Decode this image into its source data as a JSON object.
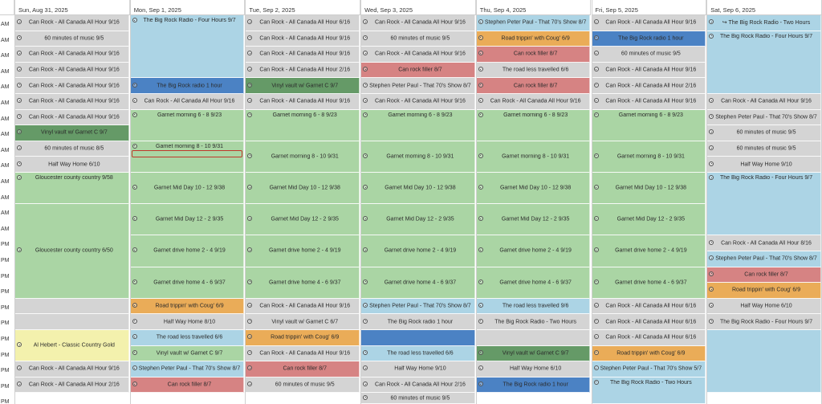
{
  "colors": {
    "gray": "#d4d4d4",
    "blue": "#acd4e5",
    "green": "#aad5a4",
    "orange": "#eaac58",
    "red": "#d68383",
    "darkblue": "#4b82c4",
    "darkgreen": "#659a67",
    "yellow": "#f3f1ad"
  },
  "time_labels": [
    "AM",
    "AM",
    "AM",
    "AM",
    "AM",
    "AM",
    "AM",
    "AM",
    "AM",
    "AM",
    "AM",
    "AM",
    "AM",
    "AM",
    "PM",
    "PM",
    "PM",
    "PM",
    "PM",
    "PM",
    "PM",
    "PM",
    "PM",
    "PM",
    "PM",
    "PM"
  ],
  "days": [
    {
      "label": "Sun, Aug 31, 2025",
      "events": [
        {
          "r": [
            0,
            1
          ],
          "c": "gray",
          "t": "Can Rock - All Canada All Hour 9/16"
        },
        {
          "r": [
            1,
            2
          ],
          "c": "gray",
          "t": "60 minutes of  music  9/5"
        },
        {
          "r": [
            2,
            3
          ],
          "c": "gray",
          "t": "Can Rock - All Canada All Hour 9/16"
        },
        {
          "r": [
            3,
            4
          ],
          "c": "gray",
          "t": "Can Rock - All Canada All Hour 9/16"
        },
        {
          "r": [
            4,
            5
          ],
          "c": "gray",
          "t": "Can Rock - All Canada All Hour 9/16"
        },
        {
          "r": [
            5,
            6
          ],
          "c": "gray",
          "t": "Can Rock - All Canada All Hour 9/16"
        },
        {
          "r": [
            6,
            7
          ],
          "c": "gray",
          "t": "Can Rock - All Canada All Hour 9/16"
        },
        {
          "r": [
            7,
            8
          ],
          "c": "darkgreen",
          "t": "Vinyl vault w/ Garnet C 9/7"
        },
        {
          "r": [
            8,
            9
          ],
          "c": "gray",
          "t": "60 minutes of  music  8/5"
        },
        {
          "r": [
            9,
            10
          ],
          "c": "gray",
          "t": "Half Way Home 6/10"
        },
        {
          "r": [
            10,
            12
          ],
          "c": "green",
          "t": "Gloucester county country 9/58",
          "nt": true
        },
        {
          "r": [
            12,
            18
          ],
          "c": "green",
          "t": "Gloucester county country 6/50"
        },
        {
          "r": [
            18,
            19
          ],
          "c": "gray",
          "t": ""
        },
        {
          "r": [
            19,
            20
          ],
          "c": "gray",
          "t": ""
        },
        {
          "r": [
            20,
            22
          ],
          "c": "yellow",
          "t": "Al Hebert - Classic Country Gold"
        },
        {
          "r": [
            22,
            23
          ],
          "c": "gray",
          "t": "Can Rock - All Canada All Hour 9/16"
        },
        {
          "r": [
            23,
            24
          ],
          "c": "gray",
          "t": "Can Rock - All Canada All Hour 2/16"
        }
      ]
    },
    {
      "label": "Mon, Sep 1, 2025",
      "events": [
        {
          "r": [
            0,
            4
          ],
          "c": "blue",
          "t": "The Big Rock Radio - Four  Hours 9/7",
          "nt": true
        },
        {
          "r": [
            4,
            5
          ],
          "c": "darkblue",
          "t": "The Big Rock radio 1 hour"
        },
        {
          "r": [
            5,
            6
          ],
          "c": "gray",
          "t": "Can Rock - All Canada All Hour 9/16"
        },
        {
          "r": [
            6,
            8
          ],
          "c": "green",
          "t": "Garnet morning 6 - 8 9/23",
          "nt": true
        },
        {
          "r": [
            8,
            10
          ],
          "c": "green",
          "t": "Garnet morning 8 - 10 9/31",
          "nt": true
        },
        {
          "r": [
            10,
            12
          ],
          "c": "green",
          "t": "Garnet Mid Day 10 - 12 9/38"
        },
        {
          "r": [
            12,
            14
          ],
          "c": "green",
          "t": "Garnet Mid Day 12 - 2 9/35"
        },
        {
          "r": [
            14,
            16
          ],
          "c": "green",
          "t": "Garnet drive home 2 - 4 9/19"
        },
        {
          "r": [
            16,
            18
          ],
          "c": "green",
          "t": "Garnet drive home 4 - 6 9/37"
        },
        {
          "r": [
            18,
            19
          ],
          "c": "orange",
          "t": "Road trippin' with Coug' 6/9"
        },
        {
          "r": [
            19,
            20
          ],
          "c": "gray",
          "t": "Half Way Home 8/10"
        },
        {
          "r": [
            20,
            21
          ],
          "c": "blue",
          "t": "The road less travelled 6/6"
        },
        {
          "r": [
            21,
            22
          ],
          "c": "green",
          "t": "Vinyl vault w/ Garnet C 9/7"
        },
        {
          "r": [
            22,
            23
          ],
          "c": "blue",
          "t": "Stephen Peter Paul - That 70's Show 8/7"
        },
        {
          "r": [
            23,
            24
          ],
          "c": "red",
          "t": "Can rock filler 8/7"
        }
      ]
    },
    {
      "label": "Tue, Sep 2, 2025",
      "events": [
        {
          "r": [
            0,
            1
          ],
          "c": "gray",
          "t": "Can Rock - All Canada All Hour 6/16"
        },
        {
          "r": [
            1,
            2
          ],
          "c": "gray",
          "t": "Can Rock - All Canada All Hour 9/16"
        },
        {
          "r": [
            2,
            3
          ],
          "c": "gray",
          "t": "Can Rock - All Canada All Hour 9/16"
        },
        {
          "r": [
            3,
            4
          ],
          "c": "gray",
          "t": "Can Rock - All Canada All Hour 2/16"
        },
        {
          "r": [
            4,
            5
          ],
          "c": "darkgreen",
          "t": "Vinyl vault w/ Garnet C 9/7"
        },
        {
          "r": [
            5,
            6
          ],
          "c": "gray",
          "t": "Can Rock - All Canada All Hour 9/16"
        },
        {
          "r": [
            6,
            8
          ],
          "c": "green",
          "t": "Garnet morning 6 - 8 9/23",
          "nt": true
        },
        {
          "r": [
            8,
            10
          ],
          "c": "green",
          "t": "Garnet morning 8 - 10 9/31"
        },
        {
          "r": [
            10,
            12
          ],
          "c": "green",
          "t": "Garnet Mid Day 10 - 12 9/38"
        },
        {
          "r": [
            12,
            14
          ],
          "c": "green",
          "t": "Garnet Mid Day 12 - 2 9/35"
        },
        {
          "r": [
            14,
            16
          ],
          "c": "green",
          "t": "Garnet drive home 2 - 4 9/19"
        },
        {
          "r": [
            16,
            18
          ],
          "c": "green",
          "t": "Garnet drive home 4 - 6 9/37"
        },
        {
          "r": [
            18,
            19
          ],
          "c": "gray",
          "t": "Can Rock - All Canada All Hour 9/16"
        },
        {
          "r": [
            19,
            20
          ],
          "c": "gray",
          "t": "Vinyl vault w/ Garnet C 6/7"
        },
        {
          "r": [
            20,
            21
          ],
          "c": "orange",
          "t": "Road trippin' with Coug' 6/9"
        },
        {
          "r": [
            21,
            22
          ],
          "c": "gray",
          "t": "Can Rock - All Canada All Hour 9/16"
        },
        {
          "r": [
            22,
            23
          ],
          "c": "red",
          "t": "Can rock filler 8/7"
        },
        {
          "r": [
            23,
            24
          ],
          "c": "gray",
          "t": "60 minutes of  music  9/5"
        }
      ]
    },
    {
      "label": "Wed, Sep 3, 2025",
      "events": [
        {
          "r": [
            0,
            1
          ],
          "c": "gray",
          "t": "Can Rock - All Canada All Hour 9/16"
        },
        {
          "r": [
            1,
            2
          ],
          "c": "gray",
          "t": "60 minutes of  music  9/5"
        },
        {
          "r": [
            2,
            3
          ],
          "c": "gray",
          "t": "Can Rock - All Canada All Hour 9/16"
        },
        {
          "r": [
            3,
            4
          ],
          "c": "red",
          "t": "Can rock filler 8/7"
        },
        {
          "r": [
            4,
            5
          ],
          "c": "gray",
          "t": "Stephen Peter Paul - That 70's Show 8/7"
        },
        {
          "r": [
            5,
            6
          ],
          "c": "gray",
          "t": "Can Rock - All Canada All Hour 9/16"
        },
        {
          "r": [
            6,
            8
          ],
          "c": "green",
          "t": "Garnet morning 6 - 8 9/23",
          "nt": true
        },
        {
          "r": [
            8,
            10
          ],
          "c": "green",
          "t": "Garnet morning 8 - 10 9/31"
        },
        {
          "r": [
            10,
            12
          ],
          "c": "green",
          "t": "Garnet Mid Day 10 - 12 9/38"
        },
        {
          "r": [
            12,
            14
          ],
          "c": "green",
          "t": "Garnet Mid Day 12 - 2 9/35"
        },
        {
          "r": [
            14,
            16
          ],
          "c": "green",
          "t": "Garnet drive home 2 - 4 9/19"
        },
        {
          "r": [
            16,
            18
          ],
          "c": "green",
          "t": "Garnet drive home 4 - 6 9/37"
        },
        {
          "r": [
            18,
            19
          ],
          "c": "blue",
          "t": "Stephen Peter Paul - That 70's Show 8/7"
        },
        {
          "r": [
            19,
            20
          ],
          "c": "gray",
          "t": "The Big Rock radio 1 hour"
        },
        {
          "r": [
            20,
            21
          ],
          "c": "darkblue",
          "t": ""
        },
        {
          "r": [
            21,
            22
          ],
          "c": "blue",
          "t": "The road less travelled 6/6"
        },
        {
          "r": [
            22,
            23
          ],
          "c": "gray",
          "t": "Half Way Home 9/10"
        },
        {
          "r": [
            23,
            24
          ],
          "c": "gray",
          "t": "Can Rock - All Canada All Hour 2/16"
        },
        {
          "r": [
            24,
            25
          ],
          "c": "gray",
          "t": "60 minutes of  music  9/5"
        }
      ]
    },
    {
      "label": "Thu, Sep 4, 2025",
      "events": [
        {
          "r": [
            0,
            1
          ],
          "c": "blue",
          "t": "Stephen Peter Paul - That 70's Show 8/7"
        },
        {
          "r": [
            1,
            2
          ],
          "c": "orange",
          "t": "Road trippin' with Coug' 6/9"
        },
        {
          "r": [
            2,
            3
          ],
          "c": "red",
          "t": "Can rock filler 8/7"
        },
        {
          "r": [
            3,
            4
          ],
          "c": "gray",
          "t": "The road less travelled 6/6"
        },
        {
          "r": [
            4,
            5
          ],
          "c": "red",
          "t": "Can rock filler 8/7"
        },
        {
          "r": [
            5,
            6
          ],
          "c": "gray",
          "t": "Can Rock - All Canada All Hour 9/16"
        },
        {
          "r": [
            6,
            8
          ],
          "c": "green",
          "t": "Garnet morning 6 - 8 9/23",
          "nt": true
        },
        {
          "r": [
            8,
            10
          ],
          "c": "green",
          "t": "Garnet morning 8 - 10 9/31"
        },
        {
          "r": [
            10,
            12
          ],
          "c": "green",
          "t": "Garnet Mid Day 10 - 12 9/38"
        },
        {
          "r": [
            12,
            14
          ],
          "c": "green",
          "t": "Garnet Mid Day 12 - 2 9/35"
        },
        {
          "r": [
            14,
            16
          ],
          "c": "green",
          "t": "Garnet drive home 2 - 4 9/19"
        },
        {
          "r": [
            16,
            18
          ],
          "c": "green",
          "t": "Garnet drive home 4 - 6 9/37"
        },
        {
          "r": [
            18,
            19
          ],
          "c": "blue",
          "t": "The road less travelled 9/6"
        },
        {
          "r": [
            19,
            20
          ],
          "c": "gray",
          "t": "The Big Rock Radio - Two Hours"
        },
        {
          "r": [
            20,
            21
          ],
          "c": "gray",
          "t": ""
        },
        {
          "r": [
            21,
            22
          ],
          "c": "darkgreen",
          "t": "Vinyl vault w/ Garnet C 9/7"
        },
        {
          "r": [
            22,
            23
          ],
          "c": "gray",
          "t": "Half Way Home 6/10"
        },
        {
          "r": [
            23,
            24
          ],
          "c": "darkblue",
          "t": "The Big Rock radio 1 hour"
        }
      ]
    },
    {
      "label": "Fri, Sep 5, 2025",
      "events": [
        {
          "r": [
            0,
            1
          ],
          "c": "gray",
          "t": "Can Rock - All Canada All Hour 9/16"
        },
        {
          "r": [
            1,
            2
          ],
          "c": "darkblue",
          "t": "The Big Rock radio 1 hour"
        },
        {
          "r": [
            2,
            3
          ],
          "c": "gray",
          "t": "60 minutes of  music  9/5"
        },
        {
          "r": [
            3,
            4
          ],
          "c": "gray",
          "t": "Can Rock - All Canada All Hour 9/16"
        },
        {
          "r": [
            4,
            5
          ],
          "c": "gray",
          "t": "Can Rock - All Canada All Hour 2/16"
        },
        {
          "r": [
            5,
            6
          ],
          "c": "gray",
          "t": "Can Rock - All Canada All Hour 9/16"
        },
        {
          "r": [
            6,
            8
          ],
          "c": "green",
          "t": "Garnet morning 6 - 8 9/23",
          "nt": true
        },
        {
          "r": [
            8,
            10
          ],
          "c": "green",
          "t": "Garnet morning 8 - 10 9/31"
        },
        {
          "r": [
            10,
            12
          ],
          "c": "green",
          "t": "Garnet Mid Day 10 - 12 9/38"
        },
        {
          "r": [
            12,
            14
          ],
          "c": "green",
          "t": "Garnet Mid Day 12 - 2 9/35"
        },
        {
          "r": [
            14,
            16
          ],
          "c": "green",
          "t": "Garnet drive home 2 - 4 9/19"
        },
        {
          "r": [
            16,
            18
          ],
          "c": "green",
          "t": "Garnet drive home 4 - 6 9/37"
        },
        {
          "r": [
            18,
            19
          ],
          "c": "gray",
          "t": "Can Rock - All Canada All Hour 6/16"
        },
        {
          "r": [
            19,
            20
          ],
          "c": "gray",
          "t": "Can Rock - All Canada All Hour 6/16"
        },
        {
          "r": [
            20,
            21
          ],
          "c": "gray",
          "t": "Can Rock - All Canada All Hour 6/16"
        },
        {
          "r": [
            21,
            22
          ],
          "c": "orange",
          "t": "Road trippin' with Coug' 6/9"
        },
        {
          "r": [
            22,
            23
          ],
          "c": "blue",
          "t": "Stephen Peter Paul - That 70's Show 5/7"
        },
        {
          "r": [
            23,
            25
          ],
          "c": "blue",
          "t": "The Big Rock Radio - Two Hours",
          "nt": true
        }
      ]
    },
    {
      "label": "Sat, Sep 6, 2025",
      "events": [
        {
          "r": [
            0,
            1
          ],
          "c": "blue",
          "t": "↪ The Big Rock Radio - Two Hours"
        },
        {
          "r": [
            1,
            5
          ],
          "c": "blue",
          "t": "The Big Rock Radio - Four  Hours 9/7",
          "nt": true
        },
        {
          "r": [
            5,
            6
          ],
          "c": "gray",
          "t": "Can Rock - All Canada All Hour 9/16"
        },
        {
          "r": [
            6,
            7
          ],
          "c": "gray",
          "t": "Stephen Peter Paul - That 70's Show 8/7"
        },
        {
          "r": [
            7,
            8
          ],
          "c": "gray",
          "t": "60 minutes of  music  9/5"
        },
        {
          "r": [
            8,
            9
          ],
          "c": "gray",
          "t": "60 minutes of  music  9/5"
        },
        {
          "r": [
            9,
            10
          ],
          "c": "gray",
          "t": "Half Way Home 9/10"
        },
        {
          "r": [
            10,
            14
          ],
          "c": "blue",
          "t": "The Big Rock Radio - Four  Hours 9/7",
          "nt": true
        },
        {
          "r": [
            14,
            15
          ],
          "c": "gray",
          "t": "Can Rock - All Canada All Hour 8/16"
        },
        {
          "r": [
            15,
            16
          ],
          "c": "blue",
          "t": "Stephen Peter Paul - That 70's Show 8/7"
        },
        {
          "r": [
            16,
            17
          ],
          "c": "red",
          "t": "Can rock filler 8/7"
        },
        {
          "r": [
            17,
            18
          ],
          "c": "orange",
          "t": "Road trippin' with Coug' 6/9"
        },
        {
          "r": [
            18,
            19
          ],
          "c": "gray",
          "t": "Half Way Home 6/10"
        },
        {
          "r": [
            19,
            20
          ],
          "c": "gray",
          "t": "The Big Rock Radio - Four  Hours 9/7"
        },
        {
          "r": [
            20,
            24
          ],
          "c": "blue",
          "t": ""
        }
      ]
    }
  ]
}
